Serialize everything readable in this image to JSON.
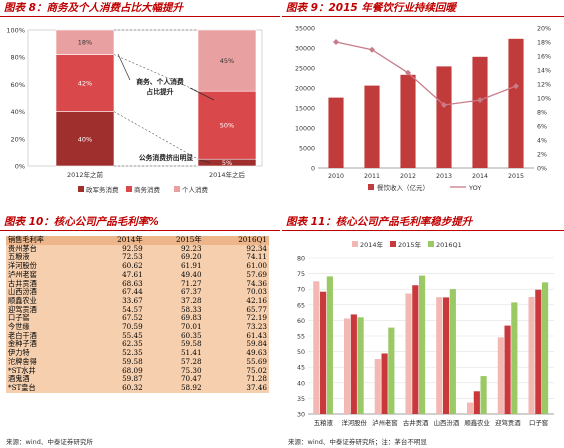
{
  "panels": {
    "p8": {
      "title": "图表 8：商务及个人消费占比大幅提升"
    },
    "p9": {
      "title": "图表 9：2015 年餐饮行业持续回暖"
    },
    "p10": {
      "title": "图表 10：核心公司产品毛利率%",
      "source": "来源：wind、中泰证券研究所"
    },
    "p11": {
      "title": "图表 11：核心公司产品毛利率稳步提升",
      "source": "来源：wind、中泰证券研究所；注：茅台不明显"
    }
  },
  "colors": {
    "gov": "#9e2f2d",
    "biz": "#d9484a",
    "ind": "#e9a0a0",
    "bar9": "#c23b3b",
    "yoy": "#c97b89",
    "c2014": "#f3b8b4",
    "c2015": "#c9393b",
    "c2016": "#9ac965",
    "title": "#c00000"
  },
  "chart_data": [
    {
      "type": "bar",
      "stacked": true,
      "categories": [
        "2012年之前",
        "2014年之后"
      ],
      "series": [
        {
          "name": "政军务消费",
          "values": [
            40,
            5
          ]
        },
        {
          "name": "商务消费",
          "values": [
            42,
            50
          ]
        },
        {
          "name": "个人消费",
          "values": [
            18,
            45
          ]
        }
      ],
      "data_labels": [
        [
          "40%",
          "42%",
          "18%"
        ],
        [
          "5%",
          "50%",
          "45%"
        ]
      ],
      "yticks": [
        "0%",
        "20%",
        "40%",
        "60%",
        "80%",
        "100%"
      ],
      "ylim": [
        0,
        100
      ],
      "annotations": [
        "商务、个人消费\n占比提升",
        "公务消费挤出明显"
      ]
    },
    {
      "type": "bar",
      "categories": [
        "2010",
        "2011",
        "2012",
        "2013",
        "2014",
        "2015"
      ],
      "series": [
        {
          "name": "餐饮收入（亿元）",
          "values": [
            17600,
            20600,
            23300,
            25400,
            27800,
            32300
          ],
          "axis": "left"
        },
        {
          "name": "YOY",
          "type": "line",
          "values": [
            18,
            16.9,
            13.6,
            9.0,
            9.7,
            11.7
          ],
          "axis": "right"
        }
      ],
      "ylim": [
        0,
        35000
      ],
      "yticks": [
        "0",
        "5000",
        "10000",
        "15000",
        "20000",
        "25000",
        "30000",
        "35000"
      ],
      "y2lim": [
        0,
        20
      ],
      "y2ticks": [
        "0%",
        "2%",
        "4%",
        "6%",
        "8%",
        "10%",
        "12%",
        "14%",
        "16%",
        "18%",
        "20%"
      ]
    },
    {
      "type": "table",
      "columns": [
        "销售毛利率",
        "2014年",
        "2015年",
        "2016Q1"
      ],
      "rows": [
        [
          "贵州茅台",
          "92.59",
          "92.23",
          "92.34"
        ],
        [
          "五粮液",
          "72.53",
          "69.20",
          "74.11"
        ],
        [
          "洋河股份",
          "60.62",
          "61.91",
          "61.00"
        ],
        [
          "泸州老窖",
          "47.61",
          "49.40",
          "57.69"
        ],
        [
          "古井贡酒",
          "68.63",
          "71.27",
          "74.36"
        ],
        [
          "山西汾酒",
          "67.44",
          "67.37",
          "70.03"
        ],
        [
          "顺鑫农业",
          "33.67",
          "37.28",
          "42.16"
        ],
        [
          "迎驾贡酒",
          "54.57",
          "58.33",
          "65.77"
        ],
        [
          "口子窖",
          "67.52",
          "69.83",
          "72.19"
        ],
        [
          "今世缘",
          "70.59",
          "70.01",
          "73.23"
        ],
        [
          "老白干酒",
          "55.45",
          "60.35",
          "61.43"
        ],
        [
          "金种子酒",
          "62.35",
          "59.58",
          "59.84"
        ],
        [
          "伊力特",
          "52.35",
          "51.41",
          "49.63"
        ],
        [
          "沱牌舍得",
          "59.58",
          "57.28",
          "55.69"
        ],
        [
          "*ST水井",
          "68.09",
          "75.30",
          "75.02"
        ],
        [
          "酒鬼酒",
          "59.87",
          "70.47",
          "71.28"
        ],
        [
          "*ST皇台",
          "60.32",
          "58.92",
          "37.46"
        ]
      ]
    },
    {
      "type": "bar",
      "categories": [
        "五粮液",
        "洋河股份",
        "泸州老窖",
        "古井贡酒",
        "山西汾酒",
        "顺鑫农业",
        "迎驾贡酒",
        "口子窖"
      ],
      "series": [
        {
          "name": "2014年",
          "values": [
            72.53,
            60.62,
            47.61,
            68.63,
            67.44,
            33.67,
            54.57,
            67.52
          ]
        },
        {
          "name": "2015年",
          "values": [
            69.2,
            61.91,
            49.4,
            71.27,
            67.37,
            37.28,
            58.33,
            69.83
          ]
        },
        {
          "name": "2016Q1",
          "values": [
            74.11,
            61.0,
            57.69,
            74.36,
            70.03,
            42.16,
            65.77,
            72.19
          ]
        }
      ],
      "ylim": [
        30,
        80
      ],
      "yticks": [
        "30",
        "35",
        "40",
        "45",
        "50",
        "55",
        "60",
        "65",
        "70",
        "75",
        "80"
      ]
    }
  ]
}
